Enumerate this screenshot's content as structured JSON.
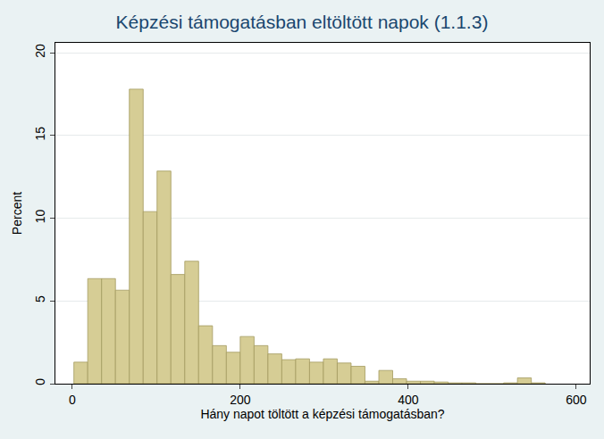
{
  "chart_data": {
    "type": "histogram",
    "title": "Képzési támogatásban eltöltött napok (1.1.3)",
    "x_label": "Hány napot töltött a képzési támogatásban?",
    "y_label": "Percent",
    "bins": [
      2,
      18.5,
      35,
      51.5,
      68,
      84.5,
      101,
      117.5,
      134,
      150.5,
      167,
      183.5,
      200,
      216.5,
      233,
      249.5,
      266,
      282.5,
      299,
      315.5,
      332,
      348.5,
      365,
      381.5,
      398,
      414.5,
      431,
      447.5,
      464,
      480.5,
      497,
      513.5,
      530,
      546.5,
      563
    ],
    "values": [
      1.3,
      6.35,
      6.35,
      5.65,
      17.8,
      10.4,
      12.85,
      6.6,
      7.4,
      3.5,
      2.3,
      1.9,
      2.85,
      2.3,
      1.8,
      1.45,
      1.5,
      1.3,
      1.5,
      1.25,
      1.05,
      0.15,
      0.8,
      0.3,
      0.15,
      0.15,
      0.1,
      0.05,
      0.05,
      0,
      0,
      0.05,
      0.35,
      0.05
    ],
    "color": "#d6cd95",
    "xlim": [
      -20,
      616
    ],
    "xticks": [
      0,
      200,
      400,
      600
    ],
    "ylim": [
      0,
      20.6
    ],
    "yticks": [
      0,
      5,
      10,
      15,
      20
    ],
    "grid": true
  }
}
